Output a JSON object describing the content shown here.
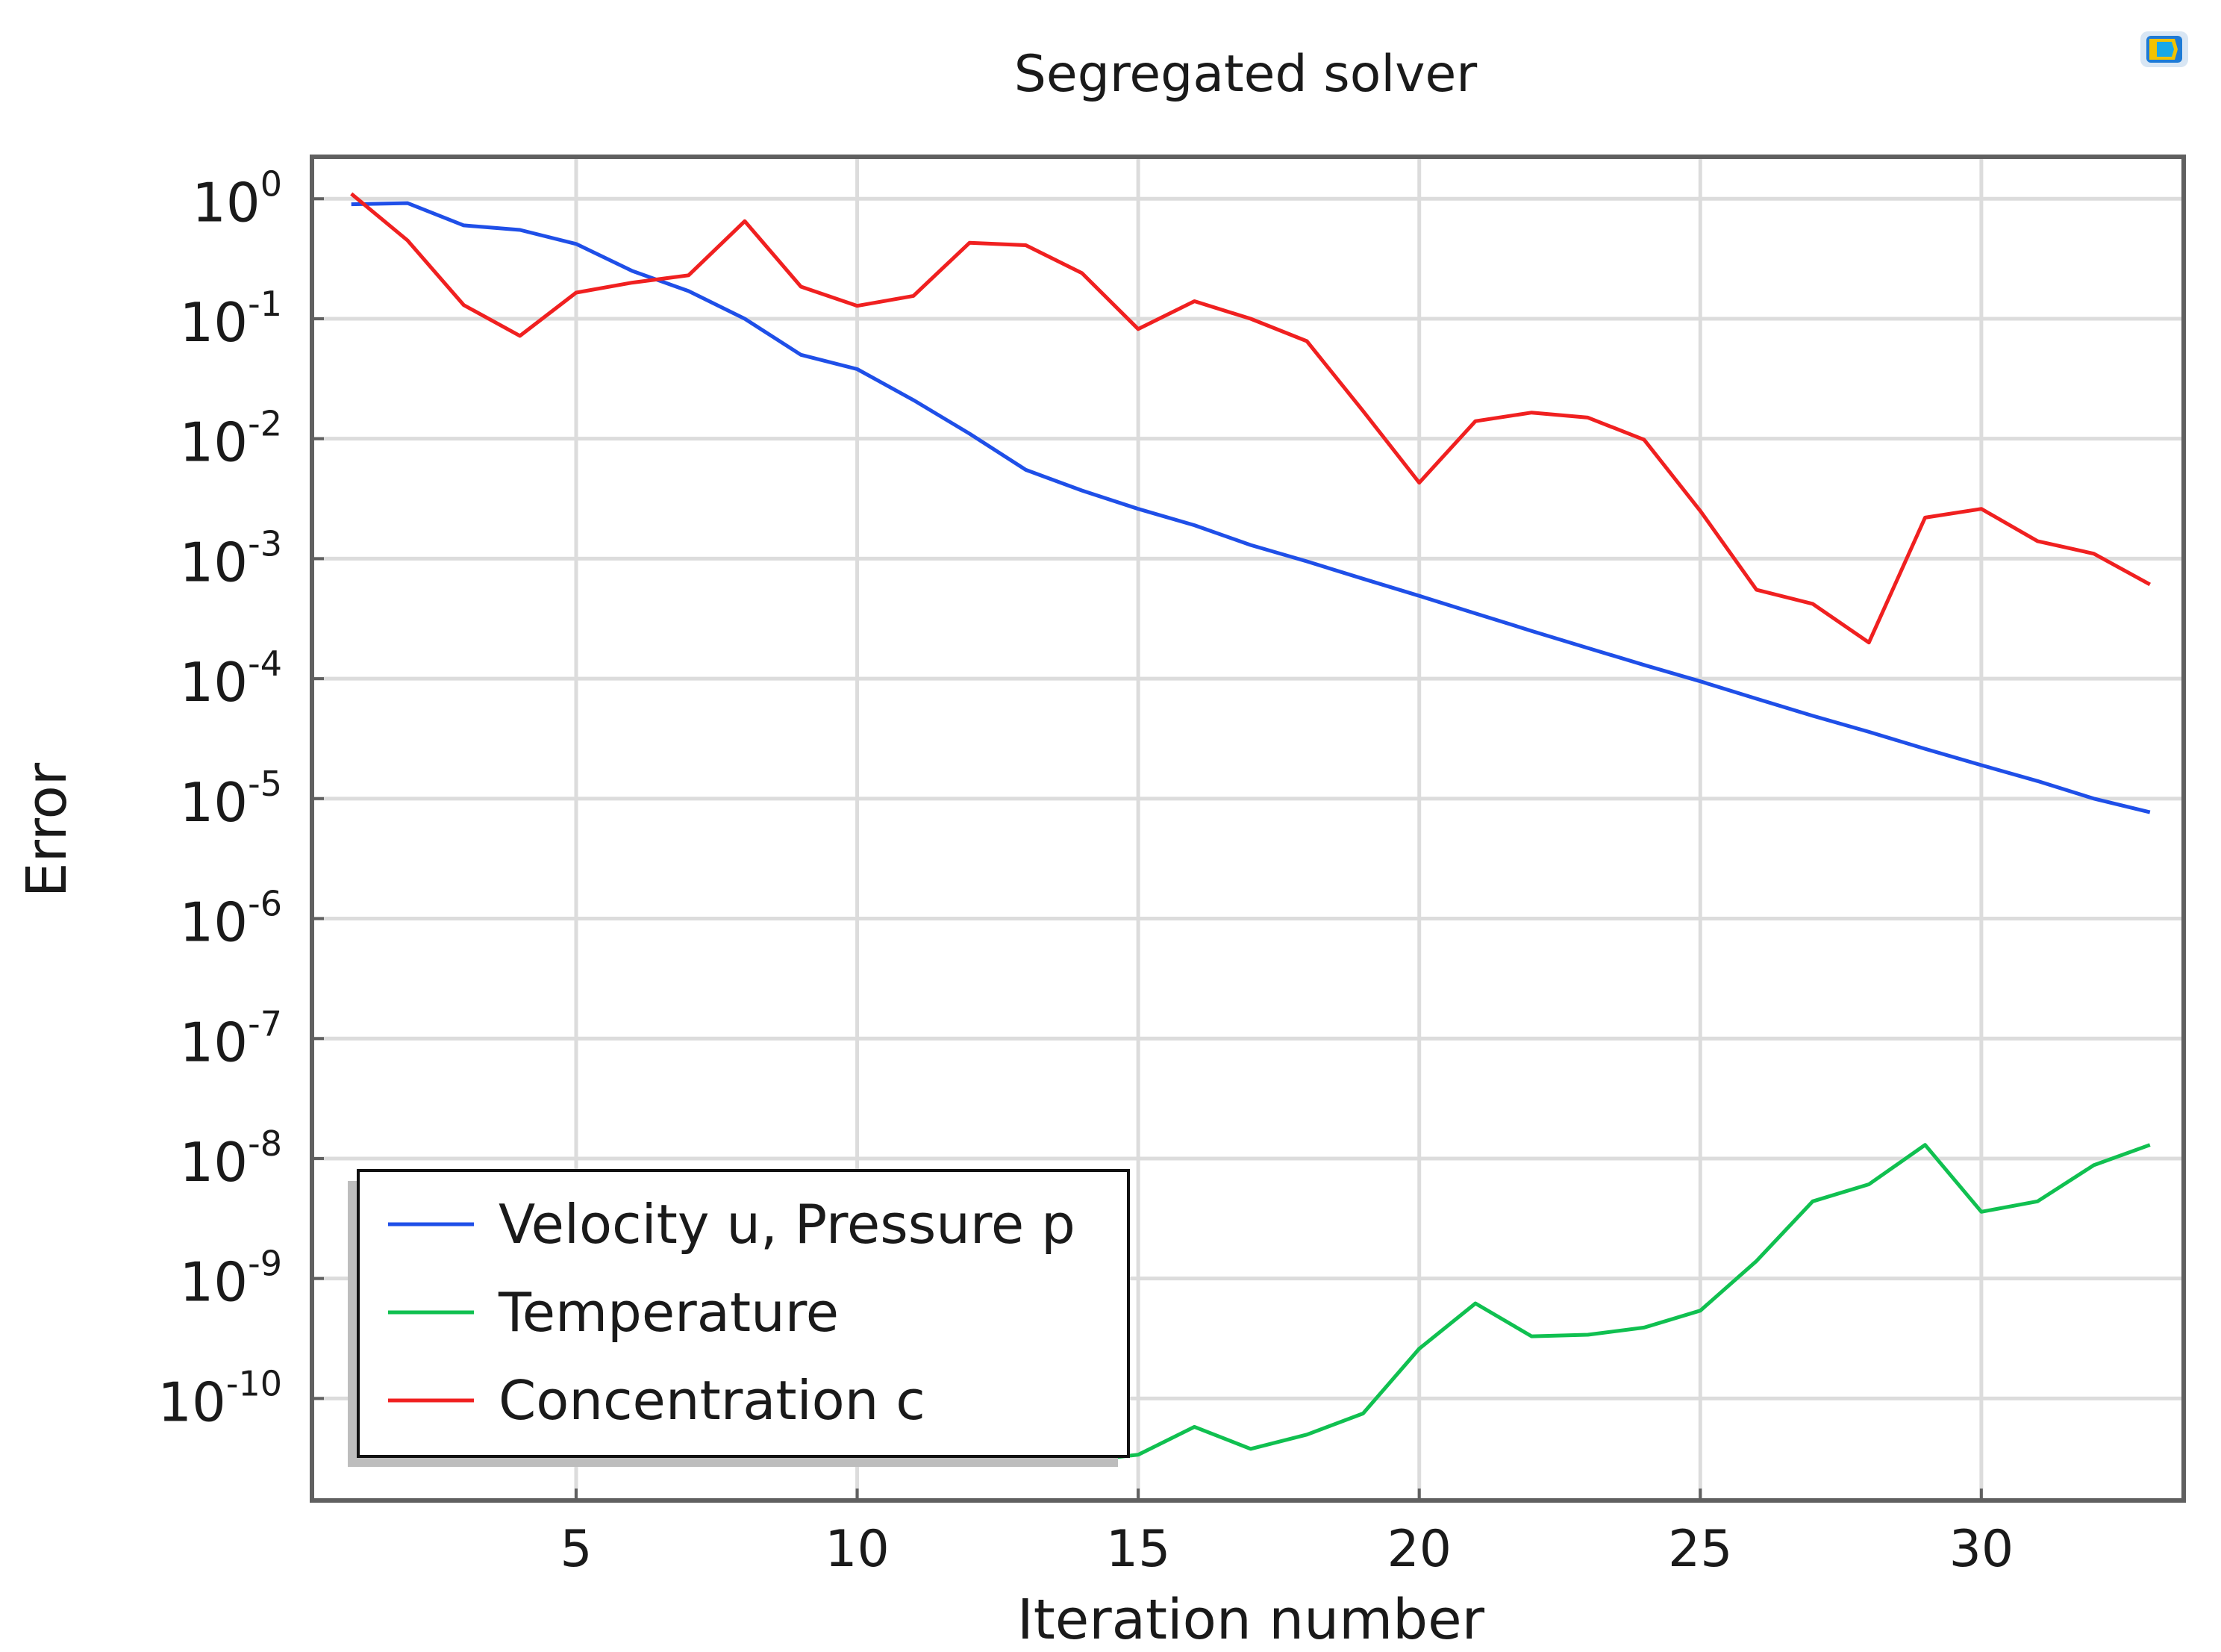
{
  "chart_data": {
    "type": "line",
    "title": "Segregated solver",
    "xlabel": "Iteration number",
    "ylabel": "Error",
    "xlim": [
      0.3,
      33.6
    ],
    "ylim_log10": [
      -10.85,
      0.35
    ],
    "y_scale": "log",
    "x_ticks": [
      5,
      10,
      15,
      20,
      25,
      30
    ],
    "y_ticks_log10": [
      0,
      -1,
      -2,
      -3,
      -4,
      -5,
      -6,
      -7,
      -8,
      -9,
      -10
    ],
    "y_tick_base": "10",
    "y_tick_exponents": [
      "0",
      "-1",
      "-2",
      "-3",
      "-4",
      "-5",
      "-6",
      "-7",
      "-8",
      "-9",
      "-10"
    ],
    "grid": true,
    "legend_position": "bottom-left",
    "series": [
      {
        "name": "Velocity u, Pressure p",
        "color": "#1f4fe8",
        "x": [
          1,
          2,
          3,
          4,
          5,
          6,
          7,
          8,
          9,
          10,
          11,
          12,
          13,
          14,
          15,
          16,
          17,
          18,
          19,
          20,
          21,
          22,
          23,
          24,
          25,
          26,
          27,
          28,
          29,
          30,
          31,
          32,
          33
        ],
        "y": [
          0.9,
          0.92,
          0.6,
          0.55,
          0.42,
          0.25,
          0.17,
          0.1,
          0.05,
          0.038,
          0.021,
          0.011,
          0.0055,
          0.0037,
          0.0026,
          0.0019,
          0.0013,
          0.00095,
          0.00068,
          0.00049,
          0.00035,
          0.00025,
          0.00018,
          0.00013,
          9.5e-05,
          6.8e-05,
          4.9e-05,
          3.6e-05,
          2.6e-05,
          1.9e-05,
          1.4e-05,
          1e-05,
          7.7e-06
        ]
      },
      {
        "name": "Temperature",
        "color": "#10c050",
        "x": [
          14.5,
          15,
          16,
          17,
          18,
          19,
          20,
          21,
          22,
          23,
          24,
          25,
          26,
          27,
          28,
          29,
          30,
          31,
          32,
          33
        ],
        "y": [
          3.2e-11,
          3.4e-11,
          5.8e-11,
          3.8e-11,
          5e-11,
          7.5e-11,
          2.6e-10,
          6.2e-10,
          3.3e-10,
          3.4e-10,
          3.9e-10,
          5.4e-10,
          1.4e-09,
          4.4e-09,
          6.1e-09,
          1.3e-08,
          3.6e-09,
          4.4e-09,
          8.8e-09,
          1.3e-08
        ]
      },
      {
        "name": "Concentration c",
        "color": "#f02020",
        "x": [
          1,
          2,
          3,
          4,
          5,
          6,
          7,
          8,
          9,
          10,
          11,
          12,
          13,
          14,
          15,
          16,
          17,
          18,
          19,
          20,
          21,
          22,
          23,
          24,
          25,
          26,
          27,
          28,
          29,
          30,
          31,
          32,
          33
        ],
        "y": [
          1.1,
          0.45,
          0.13,
          0.072,
          0.165,
          0.2,
          0.23,
          0.65,
          0.185,
          0.128,
          0.155,
          0.43,
          0.41,
          0.24,
          0.082,
          0.14,
          0.1,
          0.065,
          0.017,
          0.0043,
          0.014,
          0.0165,
          0.015,
          0.0098,
          0.0025,
          0.00055,
          0.00042,
          0.0002,
          0.0022,
          0.0026,
          0.0014,
          0.0011,
          0.00061
        ]
      }
    ]
  },
  "app": {
    "icon": "comsol-plot-icon",
    "icon_color": "#1e7bd6",
    "icon_accent": "#f2c200"
  }
}
